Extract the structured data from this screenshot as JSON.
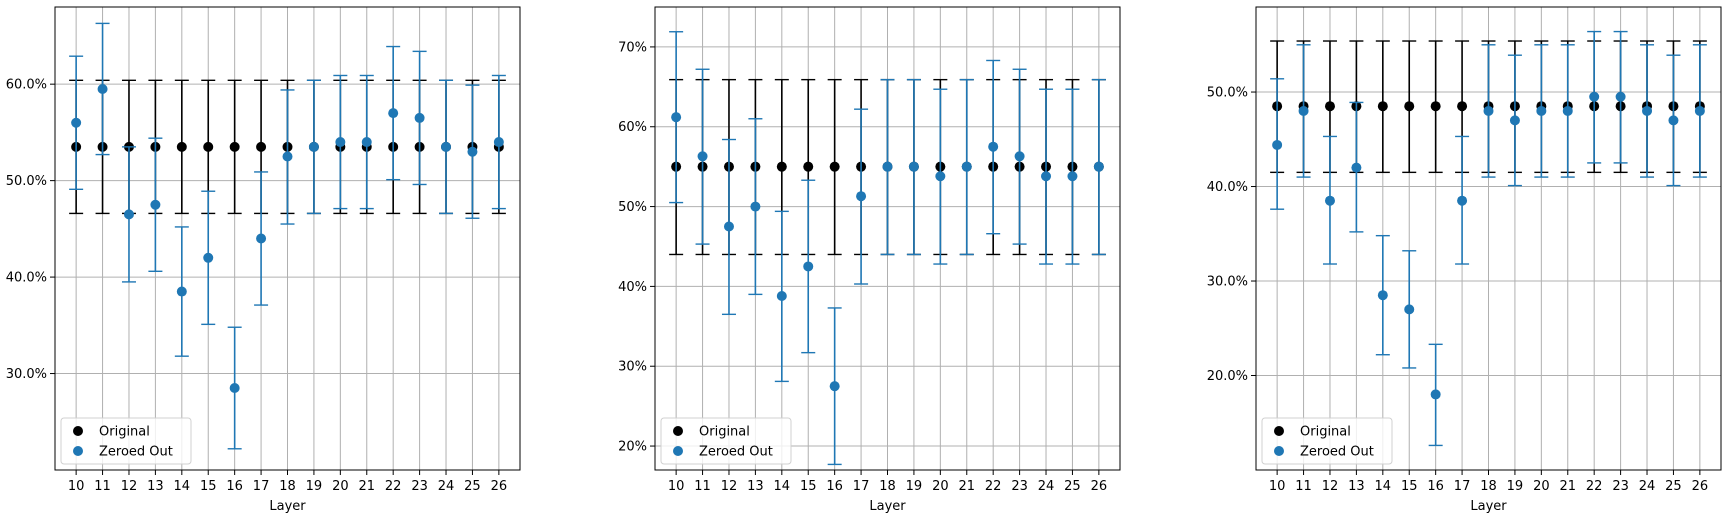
{
  "chart_data": [
    {
      "type": "scatter",
      "title": "",
      "xlabel": "Layer",
      "ylabel": "",
      "x": [
        10,
        11,
        12,
        13,
        14,
        15,
        16,
        17,
        18,
        19,
        20,
        21,
        22,
        23,
        24,
        25,
        26
      ],
      "x_tick_labels": [
        "10",
        "11",
        "12",
        "13",
        "14",
        "15",
        "16",
        "17",
        "18",
        "19",
        "20",
        "21",
        "22",
        "23",
        "24",
        "25",
        "26"
      ],
      "ylim": [
        0.2,
        0.68
      ],
      "y_ticks": [
        0.3,
        0.4,
        0.5,
        0.6
      ],
      "y_tick_labels": [
        "30.0%",
        "40.0%",
        "50.0%",
        "60.0%"
      ],
      "grid": true,
      "legend_position": "lower-left",
      "series": [
        {
          "name": "Original",
          "color": "#000000",
          "values": [
            0.535,
            0.535,
            0.535,
            0.535,
            0.535,
            0.535,
            0.535,
            0.535,
            0.535,
            0.535,
            0.535,
            0.535,
            0.535,
            0.535,
            0.535,
            0.535,
            0.535
          ],
          "lower": [
            0.466,
            0.466,
            0.466,
            0.466,
            0.466,
            0.466,
            0.466,
            0.466,
            0.466,
            0.466,
            0.466,
            0.466,
            0.466,
            0.466,
            0.466,
            0.466,
            0.466
          ],
          "upper": [
            0.604,
            0.604,
            0.604,
            0.604,
            0.604,
            0.604,
            0.604,
            0.604,
            0.604,
            0.604,
            0.604,
            0.604,
            0.604,
            0.604,
            0.604,
            0.604,
            0.604
          ]
        },
        {
          "name": "Zeroed Out",
          "color": "#1f77b4",
          "values": [
            0.56,
            0.595,
            0.465,
            0.475,
            0.385,
            0.42,
            0.285,
            0.44,
            0.525,
            0.535,
            0.54,
            0.54,
            0.57,
            0.565,
            0.535,
            0.53,
            0.54
          ],
          "lower": [
            0.491,
            0.527,
            0.395,
            0.406,
            0.318,
            0.351,
            0.222,
            0.371,
            0.455,
            0.466,
            0.471,
            0.471,
            0.501,
            0.496,
            0.466,
            0.461,
            0.471
          ],
          "upper": [
            0.629,
            0.663,
            0.535,
            0.544,
            0.452,
            0.489,
            0.348,
            0.509,
            0.594,
            0.604,
            0.609,
            0.609,
            0.639,
            0.634,
            0.604,
            0.599,
            0.609
          ]
        }
      ]
    },
    {
      "type": "scatter",
      "title": "",
      "xlabel": "Layer",
      "ylabel": "",
      "x": [
        10,
        11,
        12,
        13,
        14,
        15,
        16,
        17,
        18,
        19,
        20,
        21,
        22,
        23,
        24,
        25,
        26
      ],
      "x_tick_labels": [
        "10",
        "11",
        "12",
        "13",
        "14",
        "15",
        "16",
        "17",
        "18",
        "19",
        "20",
        "21",
        "22",
        "23",
        "24",
        "25",
        "26"
      ],
      "ylim": [
        0.17,
        0.75
      ],
      "y_ticks": [
        0.2,
        0.3,
        0.4,
        0.5,
        0.6,
        0.7
      ],
      "y_tick_labels": [
        "20%",
        "30%",
        "40%",
        "50%",
        "60%",
        "70%"
      ],
      "grid": true,
      "legend_position": "lower-left",
      "series": [
        {
          "name": "Original",
          "color": "#000000",
          "values": [
            0.55,
            0.55,
            0.55,
            0.55,
            0.55,
            0.55,
            0.55,
            0.55,
            0.55,
            0.55,
            0.55,
            0.55,
            0.55,
            0.55,
            0.55,
            0.55,
            0.55
          ],
          "lower": [
            0.44,
            0.44,
            0.44,
            0.44,
            0.44,
            0.44,
            0.44,
            0.44,
            0.44,
            0.44,
            0.44,
            0.44,
            0.44,
            0.44,
            0.44,
            0.44,
            0.44
          ],
          "upper": [
            0.659,
            0.659,
            0.659,
            0.659,
            0.659,
            0.659,
            0.659,
            0.659,
            0.659,
            0.659,
            0.659,
            0.659,
            0.659,
            0.659,
            0.659,
            0.659,
            0.659
          ]
        },
        {
          "name": "Zeroed Out",
          "color": "#1f77b4",
          "values": [
            0.612,
            0.563,
            0.475,
            0.5,
            0.388,
            0.425,
            0.275,
            0.513,
            0.55,
            0.55,
            0.538,
            0.55,
            0.575,
            0.563,
            0.538,
            0.538,
            0.55
          ],
          "lower": [
            0.505,
            0.453,
            0.365,
            0.39,
            0.281,
            0.317,
            0.177,
            0.403,
            0.44,
            0.44,
            0.428,
            0.44,
            0.466,
            0.453,
            0.428,
            0.428,
            0.44
          ],
          "upper": [
            0.719,
            0.672,
            0.584,
            0.61,
            0.494,
            0.533,
            0.373,
            0.622,
            0.659,
            0.659,
            0.647,
            0.659,
            0.683,
            0.672,
            0.647,
            0.647,
            0.659
          ]
        }
      ]
    },
    {
      "type": "scatter",
      "title": "",
      "xlabel": "Layer",
      "ylabel": "",
      "x": [
        10,
        11,
        12,
        13,
        14,
        15,
        16,
        17,
        18,
        19,
        20,
        21,
        22,
        23,
        24,
        25,
        26
      ],
      "x_tick_labels": [
        "10",
        "11",
        "12",
        "13",
        "14",
        "15",
        "16",
        "17",
        "18",
        "19",
        "20",
        "21",
        "22",
        "23",
        "24",
        "25",
        "26"
      ],
      "ylim": [
        0.1,
        0.59
      ],
      "y_ticks": [
        0.2,
        0.3,
        0.4,
        0.5
      ],
      "y_tick_labels": [
        "20.0%",
        "30.0%",
        "40.0%",
        "50.0%"
      ],
      "grid": true,
      "legend_position": "lower-left",
      "series": [
        {
          "name": "Original",
          "color": "#000000",
          "values": [
            0.485,
            0.485,
            0.485,
            0.485,
            0.485,
            0.485,
            0.485,
            0.485,
            0.485,
            0.485,
            0.485,
            0.485,
            0.485,
            0.485,
            0.485,
            0.485,
            0.485
          ],
          "lower": [
            0.415,
            0.415,
            0.415,
            0.415,
            0.415,
            0.415,
            0.415,
            0.415,
            0.415,
            0.415,
            0.415,
            0.415,
            0.415,
            0.415,
            0.415,
            0.415,
            0.415
          ],
          "upper": [
            0.554,
            0.554,
            0.554,
            0.554,
            0.554,
            0.554,
            0.554,
            0.554,
            0.554,
            0.554,
            0.554,
            0.554,
            0.554,
            0.554,
            0.554,
            0.554,
            0.554
          ]
        },
        {
          "name": "Zeroed Out",
          "color": "#1f77b4",
          "values": [
            0.444,
            0.48,
            0.385,
            0.42,
            0.285,
            0.27,
            0.18,
            0.385,
            0.48,
            0.47,
            0.48,
            0.48,
            0.495,
            0.495,
            0.48,
            0.47,
            0.48
          ],
          "lower": [
            0.376,
            0.41,
            0.318,
            0.352,
            0.222,
            0.208,
            0.126,
            0.318,
            0.41,
            0.401,
            0.41,
            0.41,
            0.425,
            0.425,
            0.41,
            0.401,
            0.41
          ],
          "upper": [
            0.514,
            0.55,
            0.453,
            0.489,
            0.348,
            0.332,
            0.233,
            0.453,
            0.55,
            0.539,
            0.55,
            0.55,
            0.564,
            0.564,
            0.55,
            0.539,
            0.55
          ]
        }
      ]
    }
  ]
}
